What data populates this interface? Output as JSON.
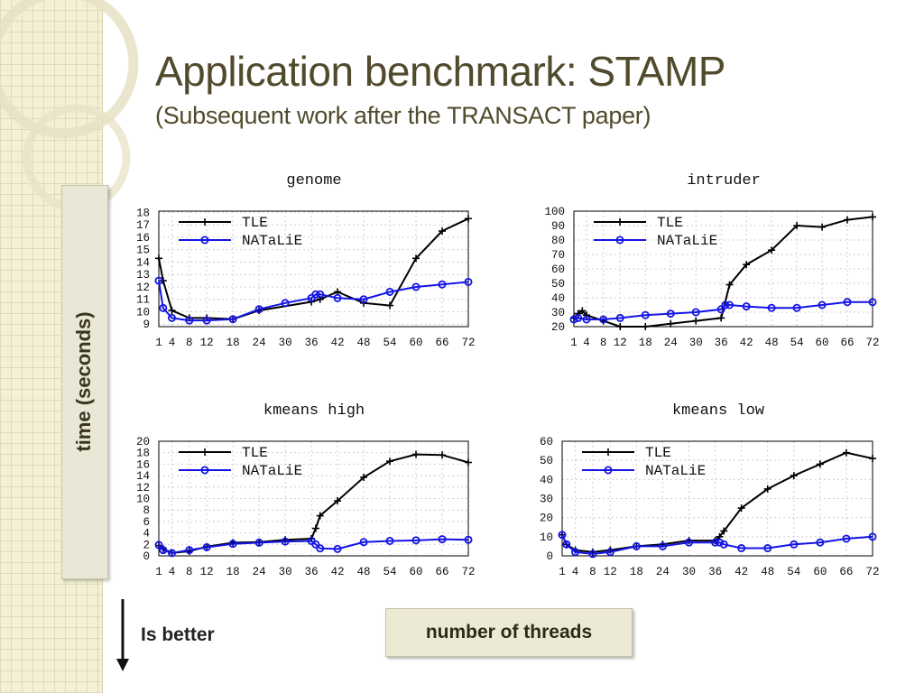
{
  "slide": {
    "title": "Application benchmark: STAMP",
    "subtitle": "(Subsequent work after the TRANSACT paper)",
    "y_axis_label": "time (seconds)",
    "x_axis_label": "number of threads",
    "arrow_label": "Is better"
  },
  "colors": {
    "tle": "#000000",
    "natalie": "#1414e6",
    "title": "#514a2c"
  },
  "chart_data": [
    {
      "type": "line",
      "title": "genome",
      "x": [
        1,
        2,
        4,
        8,
        12,
        18,
        24,
        30,
        36,
        37,
        38,
        42,
        48,
        54,
        60,
        66,
        72
      ],
      "xticks": [
        1,
        4,
        8,
        12,
        18,
        24,
        30,
        36,
        42,
        48,
        54,
        60,
        66,
        72
      ],
      "yticks": [
        9,
        10,
        11,
        12,
        13,
        14,
        15,
        16,
        17,
        18
      ],
      "ylim": [
        8.8,
        18.1
      ],
      "legend": "top-left",
      "series": [
        {
          "name": "TLE",
          "x": [
            1,
            2,
            4,
            8,
            12,
            18,
            24,
            36,
            38,
            42,
            48,
            54,
            60,
            66,
            72
          ],
          "values": [
            14.3,
            12.5,
            10.1,
            9.5,
            9.5,
            9.4,
            10.1,
            10.8,
            11.0,
            11.6,
            10.7,
            10.5,
            14.3,
            16.5,
            17.5
          ]
        },
        {
          "name": "NATaLiE",
          "x": [
            1,
            2,
            4,
            8,
            12,
            18,
            24,
            30,
            36,
            37,
            38,
            42,
            48,
            54,
            60,
            66,
            72
          ],
          "values": [
            12.5,
            10.3,
            9.5,
            9.3,
            9.3,
            9.4,
            10.2,
            10.7,
            11.1,
            11.4,
            11.4,
            11.1,
            11.0,
            11.6,
            12.0,
            12.2,
            12.4
          ]
        }
      ]
    },
    {
      "type": "line",
      "title": "intruder",
      "xticks": [
        1,
        4,
        8,
        12,
        18,
        24,
        30,
        36,
        42,
        48,
        54,
        60,
        66,
        72
      ],
      "yticks": [
        20,
        30,
        40,
        50,
        60,
        70,
        80,
        90,
        100
      ],
      "ylim": [
        20,
        100
      ],
      "legend": "top-left",
      "series": [
        {
          "name": "TLE",
          "x": [
            1,
            2,
            3,
            4,
            8,
            12,
            18,
            24,
            30,
            36,
            38,
            42,
            48,
            54,
            60,
            66,
            72
          ],
          "values": [
            26,
            29,
            31,
            28,
            24,
            20,
            20,
            22,
            24,
            26,
            49,
            63,
            73,
            90,
            89,
            94,
            96
          ]
        },
        {
          "name": "NATaLiE",
          "x": [
            1,
            2,
            4,
            8,
            12,
            18,
            24,
            30,
            36,
            37,
            38,
            42,
            48,
            54,
            60,
            66,
            72
          ],
          "values": [
            25,
            26,
            25,
            25,
            26,
            28,
            29,
            30,
            32,
            35,
            35,
            34,
            33,
            33,
            35,
            37,
            37
          ]
        }
      ]
    },
    {
      "type": "line",
      "title": "kmeans high",
      "xticks": [
        1,
        4,
        8,
        12,
        18,
        24,
        30,
        36,
        42,
        48,
        54,
        60,
        66,
        72
      ],
      "yticks": [
        0,
        2,
        4,
        6,
        8,
        10,
        12,
        14,
        16,
        18,
        20
      ],
      "ylim": [
        0,
        20
      ],
      "legend": "top-left",
      "series": [
        {
          "name": "TLE",
          "x": [
            1,
            2,
            4,
            8,
            12,
            18,
            24,
            30,
            36,
            37,
            38,
            42,
            48,
            54,
            60,
            66,
            72
          ],
          "values": [
            1.8,
            1.2,
            0.5,
            0.8,
            1.6,
            2.3,
            2.4,
            2.8,
            3.0,
            4.8,
            7.0,
            9.6,
            13.7,
            16.5,
            17.7,
            17.6,
            16.3
          ]
        },
        {
          "name": "NATaLiE",
          "x": [
            1,
            2,
            4,
            8,
            12,
            18,
            24,
            30,
            36,
            37,
            38,
            42,
            48,
            54,
            60,
            66,
            72
          ],
          "values": [
            1.9,
            1.0,
            0.5,
            1.0,
            1.5,
            2.1,
            2.3,
            2.5,
            2.6,
            2.0,
            1.3,
            1.2,
            2.4,
            2.6,
            2.7,
            2.9,
            2.8
          ]
        }
      ]
    },
    {
      "type": "line",
      "title": "kmeans low",
      "xticks": [
        1,
        4,
        8,
        12,
        18,
        24,
        30,
        36,
        42,
        48,
        54,
        60,
        66,
        72
      ],
      "yticks": [
        0,
        10,
        20,
        30,
        40,
        50,
        60
      ],
      "ylim": [
        0,
        60
      ],
      "legend": "top-left",
      "series": [
        {
          "name": "TLE",
          "x": [
            1,
            2,
            4,
            8,
            12,
            18,
            24,
            30,
            36,
            37,
            38,
            42,
            48,
            54,
            60,
            66,
            72
          ],
          "values": [
            11,
            6,
            3,
            2,
            3,
            5,
            6,
            8,
            8,
            10,
            13,
            25,
            35,
            42,
            48,
            54,
            51
          ]
        },
        {
          "name": "NATaLiE",
          "x": [
            1,
            2,
            4,
            8,
            12,
            18,
            24,
            30,
            36,
            37,
            38,
            42,
            48,
            54,
            60,
            66,
            72
          ],
          "values": [
            11,
            6,
            2,
            1,
            2,
            5,
            5,
            7,
            7,
            7,
            6,
            4,
            4,
            6,
            7,
            9,
            10
          ]
        }
      ]
    }
  ]
}
